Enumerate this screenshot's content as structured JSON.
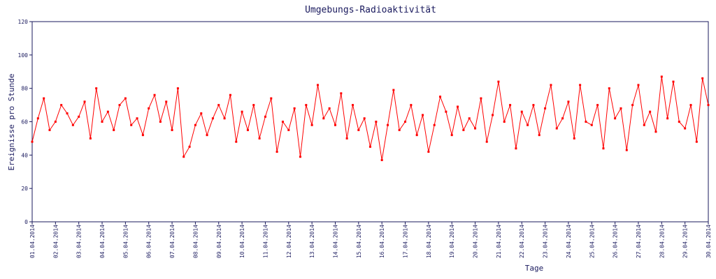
{
  "chart_data": {
    "type": "line",
    "title": "Umgebungs-Radioaktivität",
    "xlabel": "Tage",
    "ylabel": "Ereignisse pro Stunde",
    "xlim": [
      0,
      696
    ],
    "ylim": [
      0,
      120
    ],
    "yticks": [
      0,
      20,
      40,
      60,
      80,
      100,
      120
    ],
    "xticks": [
      {
        "value": 0,
        "label": "01.04.2014"
      },
      {
        "value": 24,
        "label": "02.04.2014"
      },
      {
        "value": 48,
        "label": "03.04.2014"
      },
      {
        "value": 72,
        "label": "04.04.2014"
      },
      {
        "value": 96,
        "label": "05.04.2014"
      },
      {
        "value": 120,
        "label": "06.04.2014"
      },
      {
        "value": 144,
        "label": "07.04.2014"
      },
      {
        "value": 168,
        "label": "08.04.2014"
      },
      {
        "value": 192,
        "label": "09.04.2014"
      },
      {
        "value": 216,
        "label": "10.04.2014"
      },
      {
        "value": 240,
        "label": "11.04.2014"
      },
      {
        "value": 264,
        "label": "12.04.2014"
      },
      {
        "value": 288,
        "label": "13.04.2014"
      },
      {
        "value": 312,
        "label": "14.04.2014"
      },
      {
        "value": 336,
        "label": "15.04.2014"
      },
      {
        "value": 360,
        "label": "16.04.2014"
      },
      {
        "value": 384,
        "label": "17.04.2014"
      },
      {
        "value": 408,
        "label": "18.04.2014"
      },
      {
        "value": 432,
        "label": "19.04.2014"
      },
      {
        "value": 456,
        "label": "20.04.2014"
      },
      {
        "value": 480,
        "label": "21.04.2014"
      },
      {
        "value": 504,
        "label": "22.04.2014"
      },
      {
        "value": 528,
        "label": "23.04.2014"
      },
      {
        "value": 552,
        "label": "24.04.2014"
      },
      {
        "value": 576,
        "label": "25.04.2014"
      },
      {
        "value": 600,
        "label": "26.04.2014"
      },
      {
        "value": 624,
        "label": "27.04.2014"
      },
      {
        "value": 648,
        "label": "28.04.2014"
      },
      {
        "value": 672,
        "label": "29.04.2014"
      },
      {
        "value": 696,
        "label": "30.04.2014"
      }
    ],
    "x": [
      0,
      6,
      12,
      18,
      24,
      30,
      36,
      42,
      48,
      54,
      60,
      66,
      72,
      78,
      84,
      90,
      96,
      102,
      108,
      114,
      120,
      126,
      132,
      138,
      144,
      150,
      156,
      162,
      168,
      174,
      180,
      186,
      192,
      198,
      204,
      210,
      216,
      222,
      228,
      234,
      240,
      246,
      252,
      258,
      264,
      270,
      276,
      282,
      288,
      294,
      300,
      306,
      312,
      318,
      324,
      330,
      336,
      342,
      348,
      354,
      360,
      366,
      372,
      378,
      384,
      390,
      396,
      402,
      408,
      414,
      420,
      426,
      432,
      438,
      444,
      450,
      456,
      462,
      468,
      474,
      480,
      486,
      492,
      498,
      504,
      510,
      516,
      522,
      528,
      534,
      540,
      546,
      552,
      558,
      564,
      570,
      576,
      582,
      588,
      594,
      600,
      606,
      612,
      618,
      624,
      630,
      636,
      642,
      648,
      654,
      660,
      666,
      672,
      678,
      684,
      690,
      696
    ],
    "series": [
      {
        "name": "Ereignisse",
        "color": "#ff0000",
        "values": [
          48,
          62,
          74,
          55,
          60,
          70,
          65,
          58,
          63,
          72,
          50,
          80,
          60,
          66,
          55,
          70,
          74,
          58,
          62,
          52,
          68,
          76,
          60,
          72,
          55,
          80,
          39,
          45,
          58,
          65,
          52,
          62,
          70,
          62,
          76,
          48,
          66,
          55,
          70,
          50,
          63,
          74,
          42,
          60,
          55,
          68,
          39,
          70,
          58,
          82,
          62,
          68,
          58,
          77,
          50,
          70,
          55,
          62,
          45,
          60,
          37,
          58,
          79,
          55,
          60,
          70,
          52,
          64,
          42,
          58,
          75,
          66,
          52,
          69,
          55,
          62,
          56,
          74,
          48,
          64,
          84,
          60,
          70,
          44,
          66,
          58,
          70,
          52,
          68,
          82,
          56,
          62,
          72,
          50,
          82,
          60,
          58,
          70,
          44,
          80,
          62,
          68,
          43,
          70,
          82,
          58,
          66,
          54,
          87,
          62,
          84,
          60,
          56,
          70,
          48,
          86,
          70
        ]
      }
    ]
  }
}
